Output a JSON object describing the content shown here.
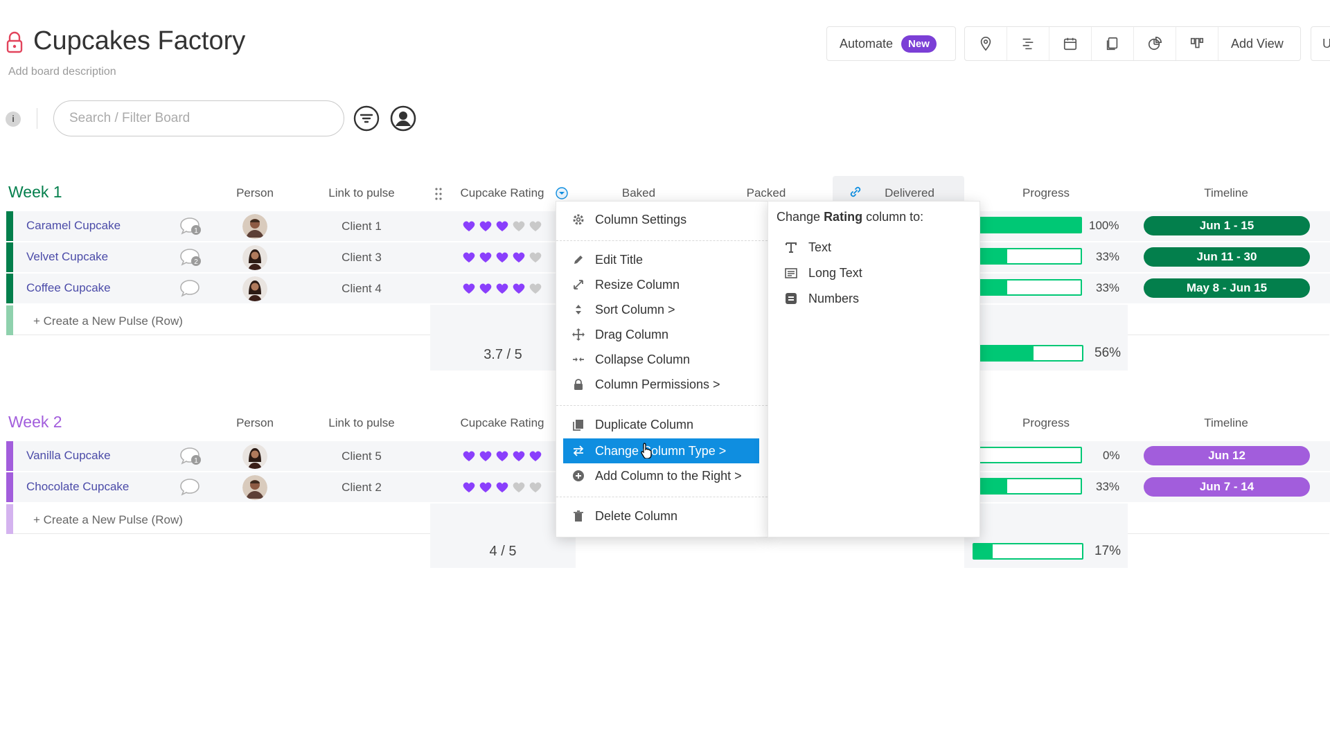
{
  "board": {
    "title": "Cupcakes Factory",
    "description": "Add board description"
  },
  "top_bar": {
    "automate_label": "Automate",
    "new_badge": "New",
    "view_icons": [
      "map-pin-icon",
      "gantt-icon",
      "calendar-icon",
      "files-icon",
      "chart-icon",
      "kanban-icon"
    ],
    "add_view_label": "Add View",
    "cut_off_label": "U"
  },
  "toolbar": {
    "info_label": "i",
    "search_placeholder": "Search / Filter Board"
  },
  "columns": {
    "person": "Person",
    "link": "Link to pulse",
    "rating": "Cupcake Rating",
    "baked": "Baked",
    "packed": "Packed",
    "delivered": "Delivered",
    "progress": "Progress",
    "timeline": "Timeline"
  },
  "groups": [
    {
      "title": "Week 1",
      "color": "#037f4c",
      "rows": [
        {
          "name": "Caramel Cupcake",
          "updates": "1",
          "client": "Client 1",
          "rating": 3,
          "progress_pct": 100,
          "progress_label": "100%",
          "timeline": "Jun 1 - 15"
        },
        {
          "name": "Velvet Cupcake",
          "updates": "2",
          "client": "Client 3",
          "rating": 4,
          "progress_pct": 33,
          "progress_label": "33%",
          "timeline": "Jun 11 - 30"
        },
        {
          "name": "Coffee Cupcake",
          "updates": "",
          "client": "Client 4",
          "rating": 4,
          "progress_pct": 33,
          "progress_label": "33%",
          "timeline": "May 8 - Jun 15"
        }
      ],
      "create_label": "+ Create a New Pulse (Row)",
      "rating_summary": "3.7 / 5",
      "progress_summary_pct": 56,
      "progress_summary_label": "56%"
    },
    {
      "title": "Week 2",
      "color": "#a25ddc",
      "rows": [
        {
          "name": "Vanilla Cupcake",
          "updates": "1",
          "client": "Client 5",
          "rating": 5,
          "progress_pct": 0,
          "progress_label": "0%",
          "timeline": "Jun 12"
        },
        {
          "name": "Chocolate Cupcake",
          "updates": "",
          "client": "Client 2",
          "rating": 3,
          "progress_pct": 33,
          "progress_label": "33%",
          "timeline": "Jun 7 - 14"
        }
      ],
      "create_label": "+ Create a New Pulse (Row)",
      "rating_summary": "4 / 5",
      "progress_summary_pct": 17,
      "progress_summary_label": "17%"
    }
  ],
  "column_menu": {
    "items": [
      {
        "label": "Column Settings",
        "icon": "gear-icon"
      },
      {
        "label": "Edit Title",
        "icon": "pencil-icon"
      },
      {
        "label": "Resize Column",
        "icon": "resize-icon"
      },
      {
        "label": "Sort Column >",
        "icon": "sort-icon"
      },
      {
        "label": "Drag Column",
        "icon": "move-icon"
      },
      {
        "label": "Collapse Column",
        "icon": "collapse-icon"
      },
      {
        "label": "Column Permissions >",
        "icon": "lock-icon"
      },
      {
        "label": "Duplicate Column",
        "icon": "duplicate-icon"
      },
      {
        "label": "Change Column Type >",
        "icon": "swap-icon"
      },
      {
        "label": "Add Column to the Right >",
        "icon": "plus-circle-icon"
      },
      {
        "label": "Delete Column",
        "icon": "trash-icon"
      }
    ]
  },
  "change_type_menu": {
    "title_prefix": "Change ",
    "title_bold": "Rating",
    "title_suffix": " column to:",
    "options": [
      {
        "label": "Text",
        "icon": "text-type-icon"
      },
      {
        "label": "Long Text",
        "icon": "long-text-icon"
      },
      {
        "label": "Numbers",
        "icon": "numbers-icon"
      }
    ]
  },
  "colors": {
    "accent_purple": "#7b3fd6",
    "progress_green": "#00c875",
    "week1_timeline": "#037f4c",
    "week2_timeline": "#a25ddc",
    "menu_highlight": "#0f8ee0",
    "heart_filled": "#8a3ffc",
    "heart_empty": "#c9c9c9"
  }
}
